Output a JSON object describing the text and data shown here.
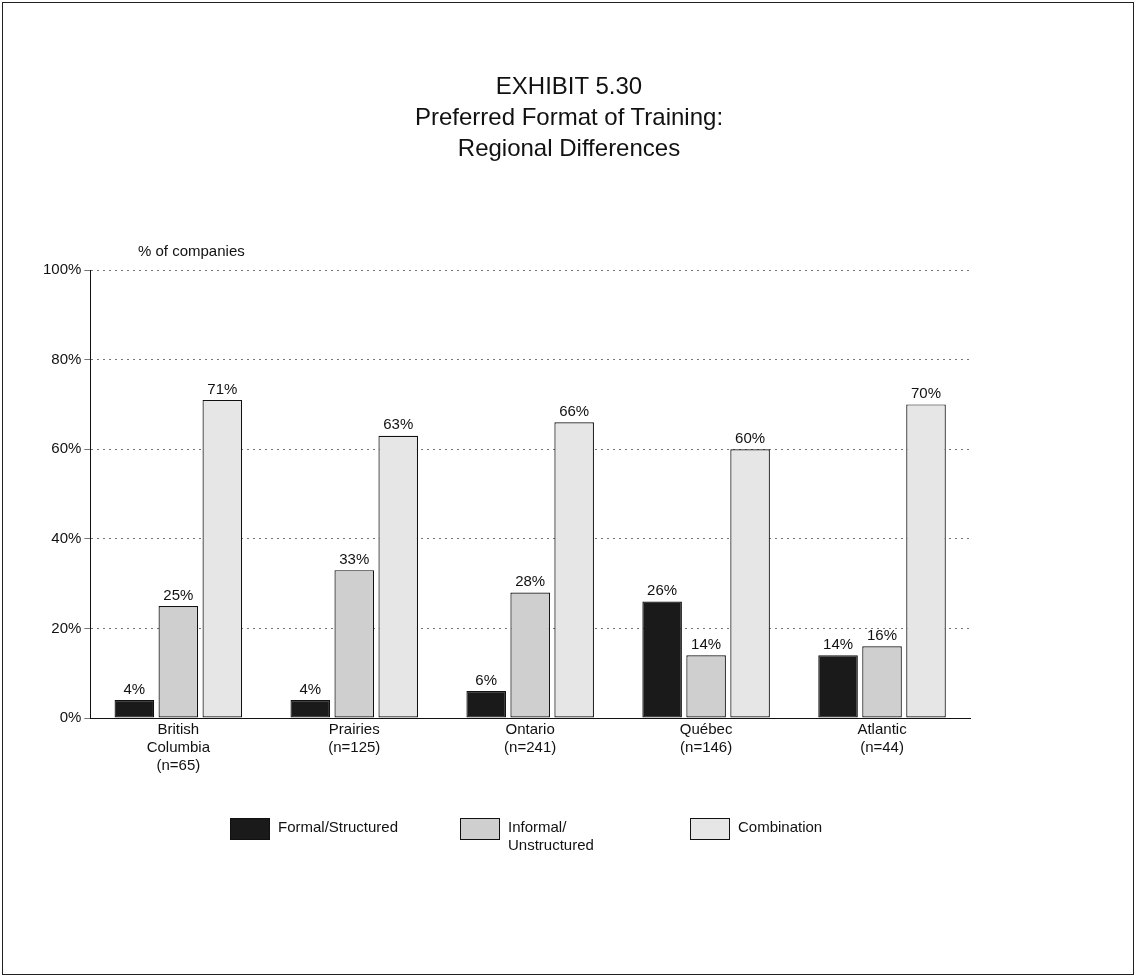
{
  "chart_data": {
    "type": "bar",
    "title": "EXHIBIT 5.30",
    "subtitle": "Preferred Format of Training:\nRegional Differences",
    "ylabel": "% of companies",
    "categories": [
      "British\nColumbia\n(n=65)",
      "Prairies\n(n=125)",
      "Ontario\n(n=241)",
      "Québec\n(n=146)",
      "Atlantic\n(n=44)"
    ],
    "series": [
      {
        "name": "Formal/Structured",
        "color": "#1a1a1a",
        "values": [
          4,
          4,
          6,
          26,
          14
        ],
        "value_labels": [
          "4%",
          "4%",
          "6%",
          "26%",
          "14%"
        ]
      },
      {
        "name": "Informal/\nUnstructured",
        "color": "#cfcfcf",
        "values": [
          25,
          33,
          28,
          14,
          16
        ],
        "value_labels": [
          "25%",
          "33%",
          "28%",
          "14%",
          "16%"
        ]
      },
      {
        "name": "Combination",
        "color": "#e6e6e6",
        "values": [
          71,
          63,
          66,
          60,
          70
        ],
        "value_labels": [
          "71%",
          "63%",
          "66%",
          "60%",
          "70%"
        ]
      }
    ],
    "ylim": [
      0,
      100
    ],
    "yticks": [
      {
        "value": 0,
        "label": "0%"
      },
      {
        "value": 20,
        "label": "20%"
      },
      {
        "value": 40,
        "label": "40%"
      },
      {
        "value": 60,
        "label": "60%"
      },
      {
        "value": 80,
        "label": "80%"
      },
      {
        "value": 100,
        "label": "100%"
      }
    ],
    "grid": "y",
    "legend": "bottom"
  }
}
